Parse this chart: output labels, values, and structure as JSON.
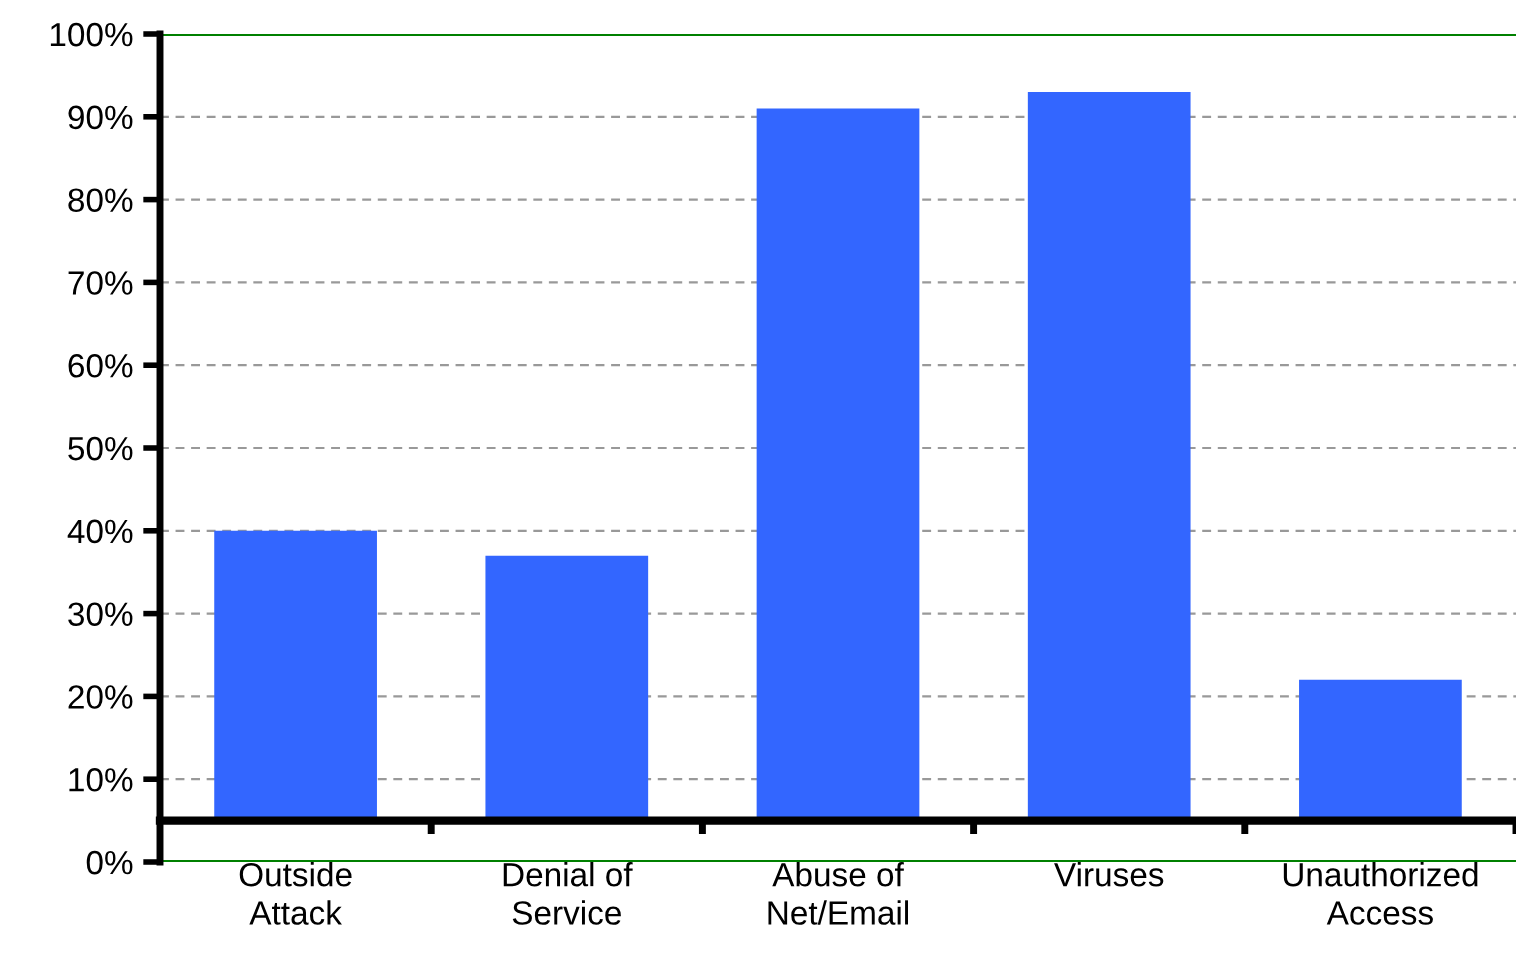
{
  "chart_data": {
    "type": "bar",
    "categories": [
      "Outside\nAttack",
      "Denial of\nService",
      "Abuse of\nNet/Email",
      "Viruses",
      "Unauthorized\nAccess"
    ],
    "base": [
      5,
      5,
      5,
      5,
      5
    ],
    "values": [
      35,
      32,
      86,
      88,
      17
    ],
    "color": "#3366ff",
    "ylim": [
      0,
      100
    ],
    "yticks": [
      {
        "value": 0,
        "label": "0%"
      },
      {
        "value": 10,
        "label": "10%"
      },
      {
        "value": 20,
        "label": "20%"
      },
      {
        "value": 30,
        "label": "30%"
      },
      {
        "value": 40,
        "label": "40%"
      },
      {
        "value": 50,
        "label": "50%"
      },
      {
        "value": 60,
        "label": "60%"
      },
      {
        "value": 70,
        "label": "70%"
      },
      {
        "value": 80,
        "label": "80%"
      },
      {
        "value": 90,
        "label": "90%"
      },
      {
        "value": 100,
        "label": "100%"
      }
    ],
    "grid": "y",
    "ref_lines": [
      {
        "axis": "y",
        "value": 5,
        "color": "#000000"
      }
    ]
  }
}
